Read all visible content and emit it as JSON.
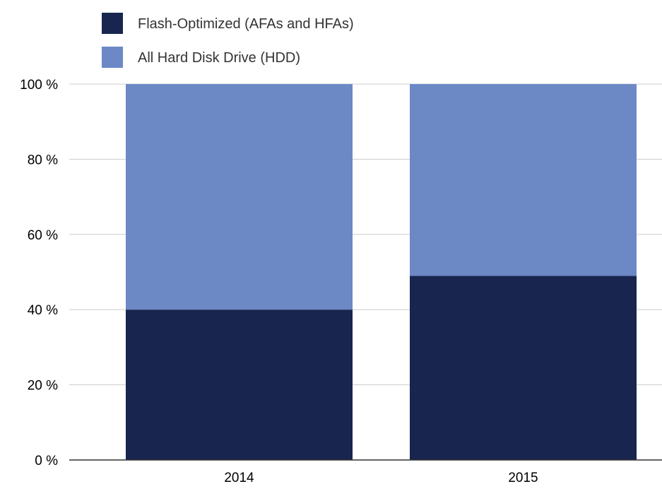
{
  "chart_data": {
    "type": "bar",
    "stacked": true,
    "categories": [
      "2014",
      "2015"
    ],
    "series": [
      {
        "name": "Flash-Optimized (AFAs and HFAs)",
        "values": [
          40,
          49
        ],
        "color": "#18264f"
      },
      {
        "name": "All Hard Disk Drive (HDD)",
        "values": [
          60,
          51
        ],
        "color": "#6c89c6"
      }
    ],
    "ylim": [
      0,
      100
    ],
    "yticks": [
      0,
      20,
      40,
      60,
      80,
      100
    ],
    "ytick_labels": [
      "0 %",
      "20 %",
      "40 %",
      "60 %",
      "80 %",
      "100 %"
    ],
    "legend_position": "top-left",
    "grid": true,
    "title": "",
    "xlabel": "",
    "ylabel": ""
  },
  "colors": {
    "grid": "#cccccc",
    "axis": "#333333"
  }
}
